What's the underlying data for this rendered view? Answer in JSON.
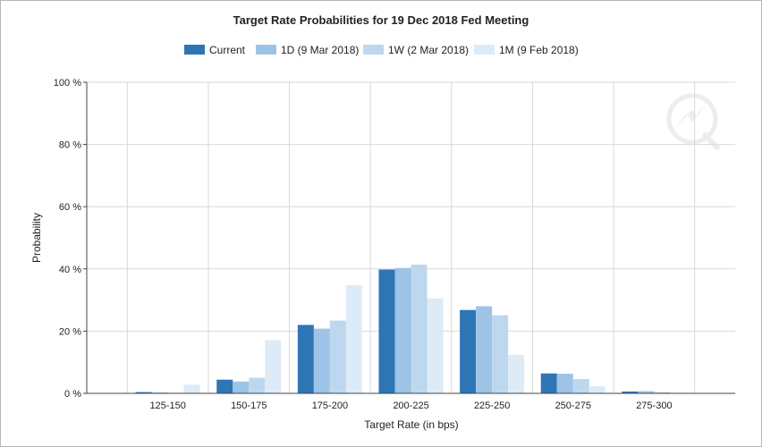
{
  "chart_data": {
    "type": "bar",
    "title": "Target Rate Probabilities for 19 Dec 2018 Fed Meeting",
    "xlabel": "Target Rate (in bps)",
    "ylabel": "Probability",
    "ylim": [
      0,
      100
    ],
    "yticks": [
      0,
      20,
      40,
      60,
      80,
      100
    ],
    "ytick_labels": [
      "0 %",
      "20 %",
      "40 %",
      "60 %",
      "80 %",
      "100 %"
    ],
    "grid": true,
    "legend_position": "top",
    "categories": [
      "125-150",
      "150-175",
      "175-200",
      "200-225",
      "225-250",
      "250-275",
      "275-300"
    ],
    "series": [
      {
        "name": "Current",
        "color": "#2e75b6",
        "values": [
          0.4,
          4.4,
          22.0,
          39.8,
          26.8,
          6.4,
          0.6
        ]
      },
      {
        "name": "1D (9 Mar 2018)",
        "color": "#9dc3e6",
        "values": [
          0.3,
          3.8,
          20.8,
          40.3,
          28.0,
          6.3,
          0.7
        ]
      },
      {
        "name": "1W (2 Mar 2018)",
        "color": "#bdd7ee",
        "values": [
          0.2,
          5.0,
          23.4,
          41.4,
          25.1,
          4.6,
          0.4
        ]
      },
      {
        "name": "1M (9 Feb 2018)",
        "color": "#ddebf7",
        "values": [
          2.8,
          17.1,
          34.8,
          30.5,
          12.4,
          2.3,
          0.2
        ]
      }
    ]
  }
}
